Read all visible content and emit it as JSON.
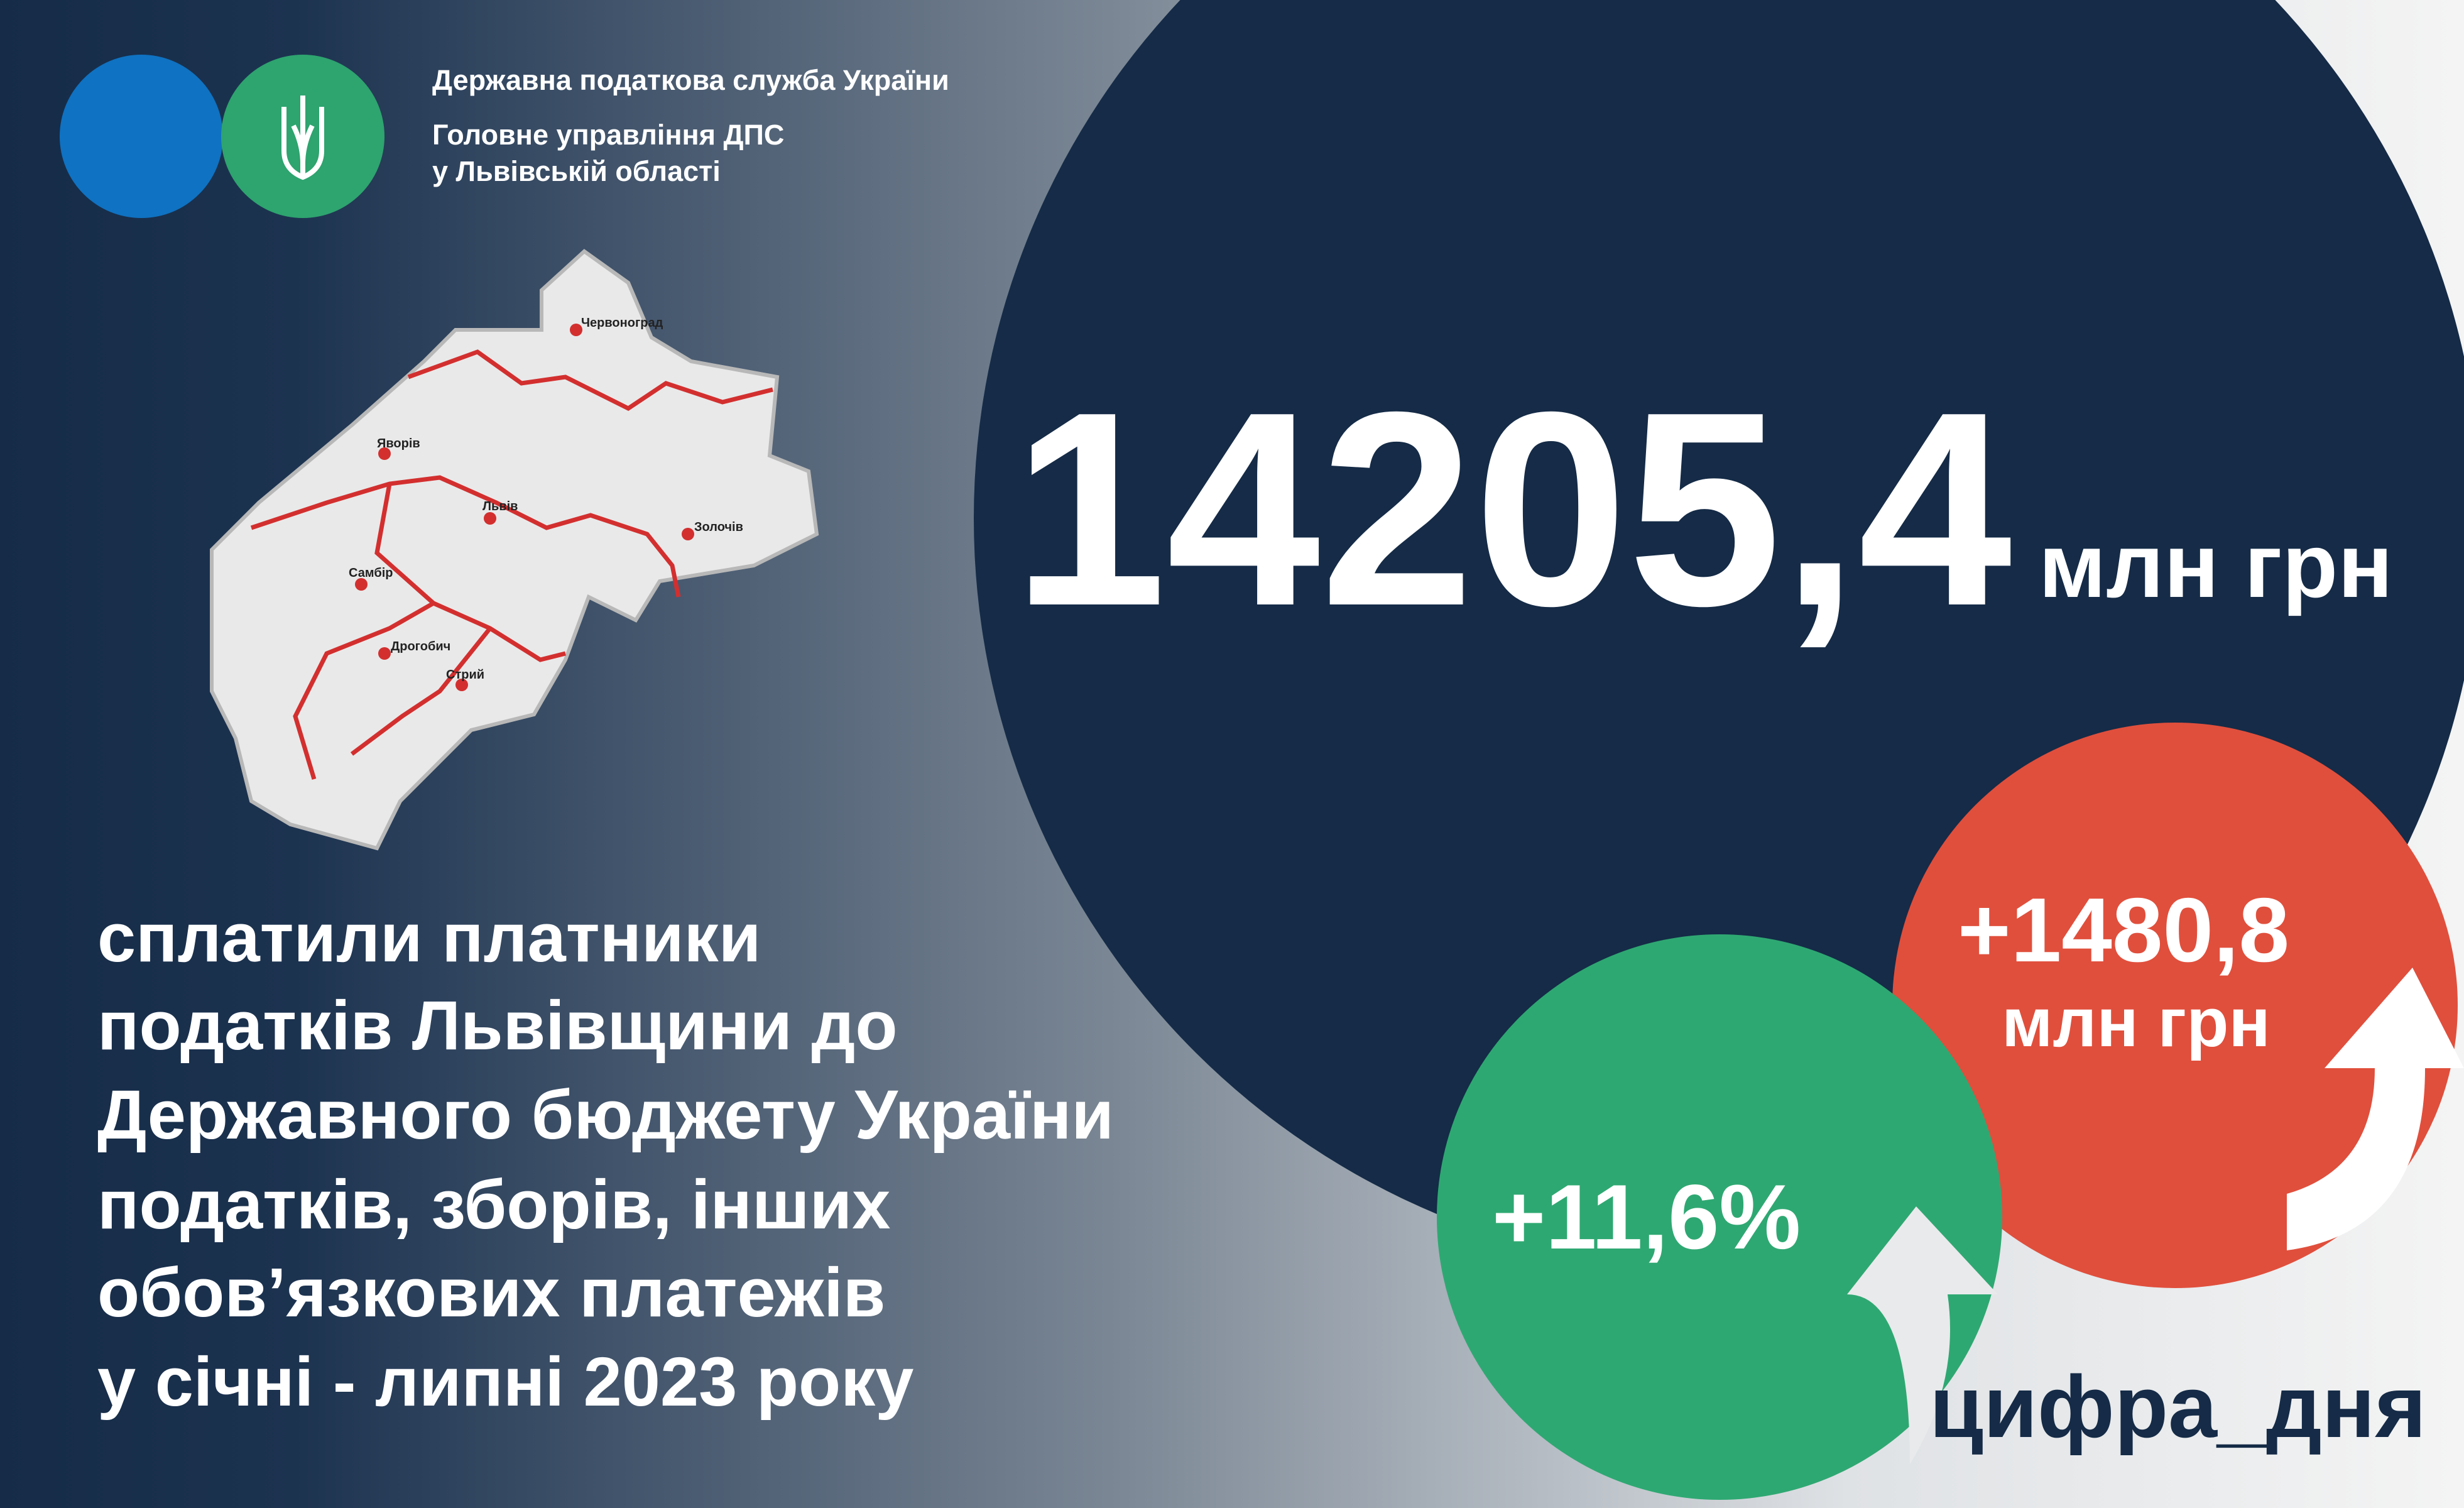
{
  "header": {
    "lines": [
      "Державна податкова служба України",
      "Головне управління ДПС",
      "у Львівській області"
    ]
  },
  "headline": {
    "amount": "14205,4",
    "unit": "млн грн"
  },
  "increase": {
    "amount": "+1480,8",
    "unit": "млн грн"
  },
  "growth": {
    "percent": "+11,6%"
  },
  "description": {
    "lines": [
      "сплатили платники",
      "податків Львівщини до",
      "Державного бюджету України",
      "податків, зборів, інших",
      "обов’язкових платежів",
      "у січні - липні 2023 року"
    ]
  },
  "map": {
    "cities": [
      "Червоноград",
      "Яворів",
      "Львів",
      "Золочів",
      "Самбір",
      "Дрогобич",
      "Стрий"
    ]
  },
  "hashtag": "цифра_дня"
}
